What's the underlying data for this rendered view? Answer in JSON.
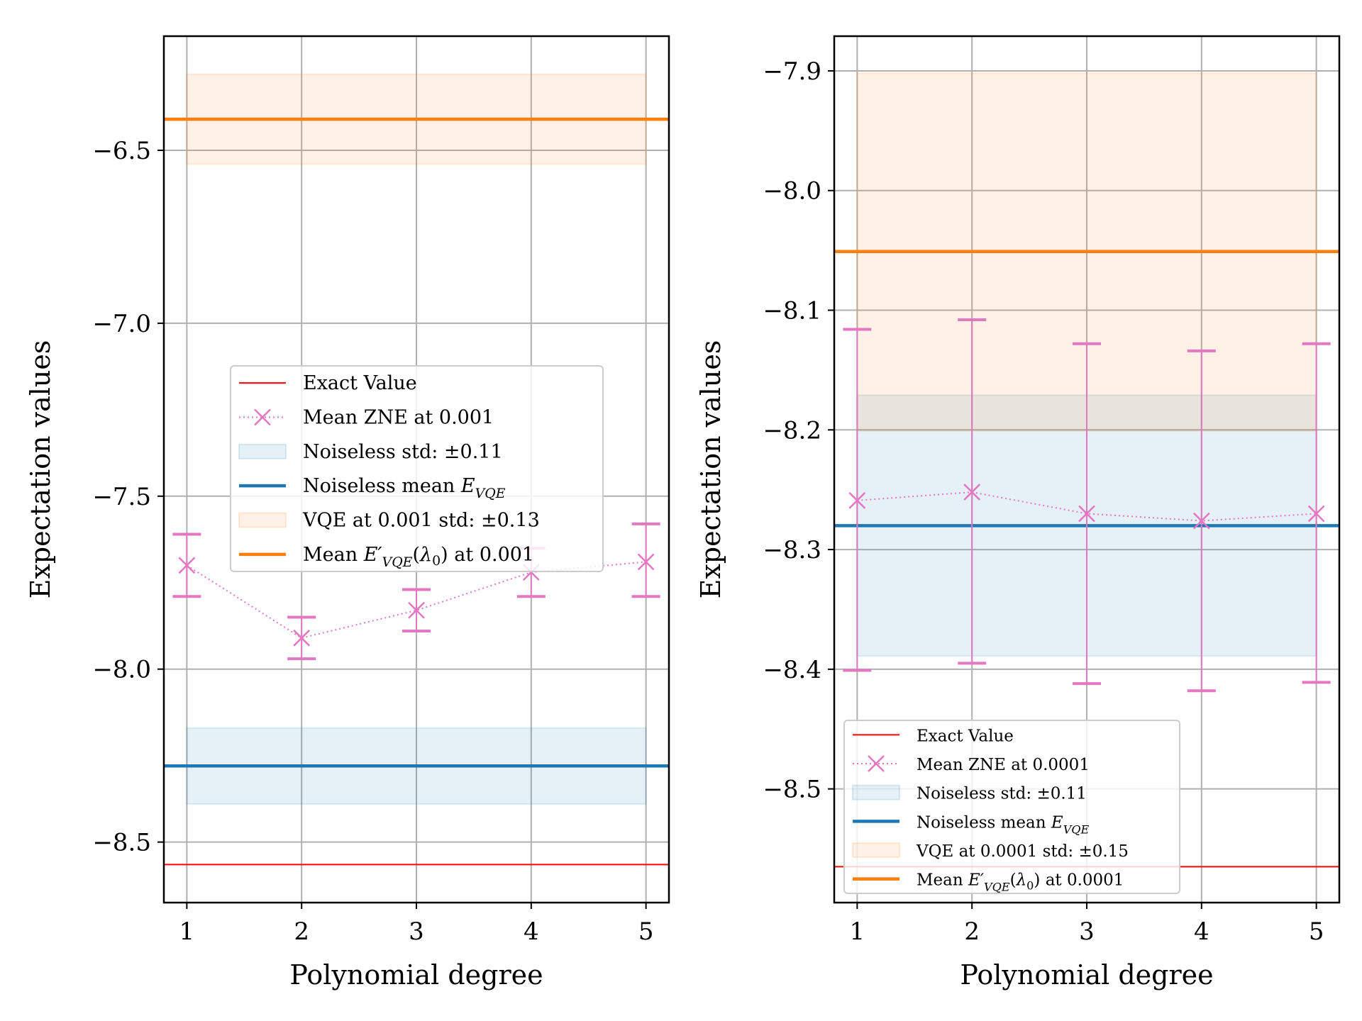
{
  "chart_data": [
    {
      "type": "line",
      "xlabel": "Polynomial degree",
      "ylabel": "Expectation values",
      "x": [
        1,
        2,
        3,
        4,
        5
      ],
      "xticks": [
        "1",
        "2",
        "3",
        "4",
        "5"
      ],
      "xlim": [
        0.8,
        5.2
      ],
      "ylim": [
        -8.675,
        -6.17
      ],
      "yticks": [
        -8.5,
        -8.0,
        -7.5,
        -7.0,
        -6.5
      ],
      "ytick_labels": [
        "−8.5",
        "−8.0",
        "−7.5",
        "−7.0",
        "−6.5"
      ],
      "grid": true,
      "legend_position": "center-right",
      "exact_value": -8.565,
      "zne": {
        "mean": [
          -7.7,
          -7.91,
          -7.83,
          -7.72,
          -7.69
        ],
        "lower": [
          -7.79,
          -7.97,
          -7.89,
          -7.79,
          -7.79
        ],
        "upper": [
          -7.61,
          -7.85,
          -7.77,
          -7.65,
          -7.58
        ]
      },
      "noiseless": {
        "mean": -8.28,
        "band": [
          -8.39,
          -8.17
        ]
      },
      "vqe_noisy": {
        "mean": -6.41,
        "band": [
          -6.54,
          -6.28
        ]
      },
      "legend": [
        {
          "kind": "thin-line",
          "color": "#ff0000",
          "label": "Exact Value"
        },
        {
          "kind": "marker-line",
          "color": "#e377c2",
          "label": "Mean ZNE at 0.001"
        },
        {
          "kind": "patch",
          "color": "#1f77b4",
          "label": "Noiseless std: ±0.11"
        },
        {
          "kind": "thick-line",
          "color": "#1f77b4",
          "label": "Noiseless mean E_VQE"
        },
        {
          "kind": "patch",
          "color": "#ff7f0e",
          "label": "VQE at 0.001 std: ±0.13"
        },
        {
          "kind": "thick-line",
          "color": "#ff7f0e",
          "label": "Mean E′_VQE(λ0) at 0.001"
        }
      ]
    },
    {
      "type": "line",
      "xlabel": "Polynomial degree",
      "ylabel": "Expectation values",
      "x": [
        1,
        2,
        3,
        4,
        5
      ],
      "xticks": [
        "1",
        "2",
        "3",
        "4",
        "5"
      ],
      "xlim": [
        0.8,
        5.2
      ],
      "ylim": [
        -8.595,
        -7.871
      ],
      "yticks": [
        -8.5,
        -8.4,
        -8.3,
        -8.2,
        -8.1,
        -8.0,
        -7.9
      ],
      "ytick_labels": [
        "−8.5",
        "−8.4",
        "−8.3",
        "−8.2",
        "−8.1",
        "−8.0",
        "−7.9"
      ],
      "grid": true,
      "legend_position": "lower-left",
      "exact_value": -8.565,
      "zne": {
        "mean": [
          -8.259,
          -8.252,
          -8.27,
          -8.276,
          -8.27
        ],
        "lower": [
          -8.401,
          -8.395,
          -8.412,
          -8.418,
          -8.411
        ],
        "upper": [
          -8.116,
          -8.108,
          -8.128,
          -8.134,
          -8.128
        ]
      },
      "noiseless": {
        "mean": -8.28,
        "band": [
          -8.389,
          -8.171
        ]
      },
      "vqe_noisy": {
        "mean": -8.051,
        "band": [
          -8.201,
          -7.902
        ]
      },
      "legend": [
        {
          "kind": "thin-line",
          "color": "#ff0000",
          "label": "Exact Value"
        },
        {
          "kind": "marker-line",
          "color": "#e377c2",
          "label": "Mean ZNE at 0.0001"
        },
        {
          "kind": "patch",
          "color": "#1f77b4",
          "label": "Noiseless std: ±0.11"
        },
        {
          "kind": "thick-line",
          "color": "#1f77b4",
          "label": "Noiseless mean E_VQE"
        },
        {
          "kind": "patch",
          "color": "#ff7f0e",
          "label": "VQE at 0.0001 std: ±0.15"
        },
        {
          "kind": "thick-line",
          "color": "#ff7f0e",
          "label": "Mean E′_VQE(λ0) at 0.0001"
        }
      ]
    }
  ],
  "colors": {
    "exact": "#ff0000",
    "zne": "#e377c2",
    "noiseless": "#1f77b4",
    "vqe": "#ff7f0e",
    "grid": "#b0b0b0"
  }
}
